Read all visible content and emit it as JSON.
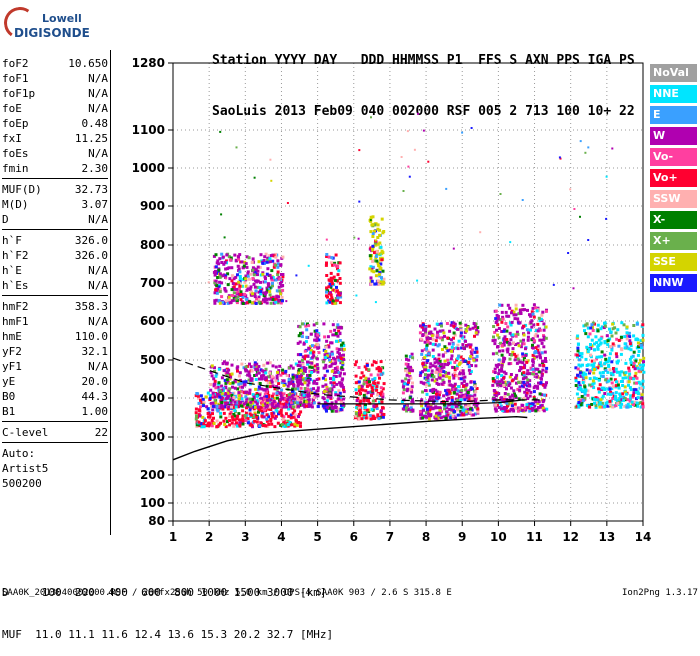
{
  "logo": {
    "brand": "Lowell",
    "product": "DIGISONDE"
  },
  "header": {
    "line1": "Station YYYY DAY   DDD HHMMSS P1  FFS S AXN PPS IGA PS",
    "line2": "SaoLuis 2013 Feb09 040 002000 RSF 005 2 713 100 10+ 22"
  },
  "params": [
    [
      {
        "label": "foF2",
        "value": "10.650"
      },
      {
        "label": "foF1",
        "value": "N/A"
      },
      {
        "label": "foF1p",
        "value": "N/A"
      },
      {
        "label": "foE",
        "value": "N/A"
      },
      {
        "label": "foEp",
        "value": "0.48"
      },
      {
        "label": "fxI",
        "value": "11.25"
      },
      {
        "label": "foEs",
        "value": "N/A"
      },
      {
        "label": "fmin",
        "value": "2.30"
      }
    ],
    [
      {
        "label": "MUF(D)",
        "value": "32.73"
      },
      {
        "label": "M(D)",
        "value": "3.07"
      },
      {
        "label": "D",
        "value": "N/A"
      }
    ],
    [
      {
        "label": "h`F",
        "value": "326.0"
      },
      {
        "label": "h`F2",
        "value": "326.0"
      },
      {
        "label": "h`E",
        "value": "N/A"
      },
      {
        "label": "h`Es",
        "value": "N/A"
      }
    ],
    [
      {
        "label": "hmF2",
        "value": "358.3"
      },
      {
        "label": "hmF1",
        "value": "N/A"
      },
      {
        "label": "hmE",
        "value": "110.0"
      },
      {
        "label": "yF2",
        "value": "32.1"
      },
      {
        "label": "yF1",
        "value": "N/A"
      },
      {
        "label": "yE",
        "value": "20.0"
      },
      {
        "label": "B0",
        "value": "44.3"
      },
      {
        "label": "B1",
        "value": "1.00"
      }
    ],
    [
      {
        "label": "C-level",
        "value": "22"
      }
    ],
    [
      {
        "label": "Auto:",
        "value": ""
      },
      {
        "label": "Artist5",
        "value": ""
      },
      {
        "label": "500200",
        "value": ""
      }
    ]
  ],
  "legend": [
    {
      "label": "NoVal",
      "color": "#a0a0a0"
    },
    {
      "label": "NNE",
      "color": "#00e5ff"
    },
    {
      "label": "E",
      "color": "#3aa0ff"
    },
    {
      "label": "W",
      "color": "#b000b0"
    },
    {
      "label": "Vo-",
      "color": "#ff3fa0"
    },
    {
      "label": "Vo+",
      "color": "#ff0030"
    },
    {
      "label": "SSW",
      "color": "#ffb0b0"
    },
    {
      "label": "X-",
      "color": "#008000"
    },
    {
      "label": "X+",
      "color": "#6ab04c"
    },
    {
      "label": "SSE",
      "color": "#d4d400"
    },
    {
      "label": "NNW",
      "color": "#1a1aff"
    }
  ],
  "footer": {
    "d_row": "D     100  200  400  600  800 1000 1500 3000 [km]",
    "muf_row": "MUF  11.0 11.1 11.6 12.4 13.6 15.3 20.2 32.7 [MHz]",
    "info": "SAA0K_2013040002000.RSF / 260fx256h 50 kHz 5.0 km / DPS-4 SAA0K 903 / 2.6 S 315.8 E",
    "version": "Ion2Png 1.3.17"
  },
  "chart_data": {
    "type": "scatter",
    "title": "",
    "xlabel": "",
    "ylabel": "",
    "x_ticks": [
      "1",
      "2",
      "3",
      "4",
      "5",
      "6",
      "7",
      "8",
      "9",
      "10",
      "11",
      "12",
      "13",
      "14"
    ],
    "y_ticks": [
      "80",
      "100",
      "200",
      "300",
      "400",
      "500",
      "600",
      "700",
      "800",
      "900",
      "1000",
      "1100",
      "1280"
    ],
    "xlim": [
      1,
      14
    ],
    "ylim": [
      80,
      1280
    ],
    "grid": true,
    "clusters": [
      {
        "x": [
          1.6,
          4.5
        ],
        "y": [
          330,
          420
        ],
        "dominant": "Vo+"
      },
      {
        "x": [
          2.0,
          4.7
        ],
        "y": [
          380,
          500
        ],
        "dominant": "W"
      },
      {
        "x": [
          2.1,
          4.0
        ],
        "y": [
          650,
          780
        ],
        "dominant": "W"
      },
      {
        "x": [
          4.4,
          5.0
        ],
        "y": [
          380,
          600
        ],
        "dominant": "W"
      },
      {
        "x": [
          5.1,
          5.7
        ],
        "y": [
          370,
          600
        ],
        "dominant": "W"
      },
      {
        "x": [
          5.2,
          5.6
        ],
        "y": [
          650,
          780
        ],
        "dominant": "Vo+"
      },
      {
        "x": [
          6.0,
          6.8
        ],
        "y": [
          350,
          500
        ],
        "dominant": "Vo+"
      },
      {
        "x": [
          6.4,
          6.8
        ],
        "y": [
          700,
          880
        ],
        "dominant": "SSE"
      },
      {
        "x": [
          7.3,
          7.6
        ],
        "y": [
          370,
          520
        ],
        "dominant": "W"
      },
      {
        "x": [
          7.8,
          8.8
        ],
        "y": [
          350,
          600
        ],
        "dominant": "W"
      },
      {
        "x": [
          8.8,
          9.4
        ],
        "y": [
          360,
          600
        ],
        "dominant": "W"
      },
      {
        "x": [
          9.8,
          11.3
        ],
        "y": [
          370,
          650
        ],
        "dominant": "W"
      },
      {
        "x": [
          12.1,
          14.0
        ],
        "y": [
          380,
          600
        ],
        "dominant": "NNE"
      }
    ],
    "trace_dashed": [
      [
        1.0,
        505
      ],
      [
        3.0,
        440
      ],
      [
        5.0,
        410
      ],
      [
        7.0,
        395
      ],
      [
        8.8,
        390
      ],
      [
        10.0,
        395
      ],
      [
        11.3,
        395
      ]
    ],
    "trace_solid": [
      [
        1.0,
        240
      ],
      [
        1.6,
        262
      ],
      [
        2.5,
        290
      ],
      [
        3.5,
        310
      ],
      [
        5.0,
        320
      ],
      [
        6.5,
        330
      ],
      [
        8.0,
        340
      ],
      [
        9.5,
        348
      ],
      [
        10.5,
        352
      ],
      [
        10.8,
        350
      ]
    ],
    "trace_top": [
      [
        5.0,
        385
      ],
      [
        6.0,
        385
      ],
      [
        7.0,
        385
      ],
      [
        8.0,
        385
      ],
      [
        9.0,
        385
      ],
      [
        10.0,
        388
      ],
      [
        10.7,
        395
      ]
    ]
  }
}
